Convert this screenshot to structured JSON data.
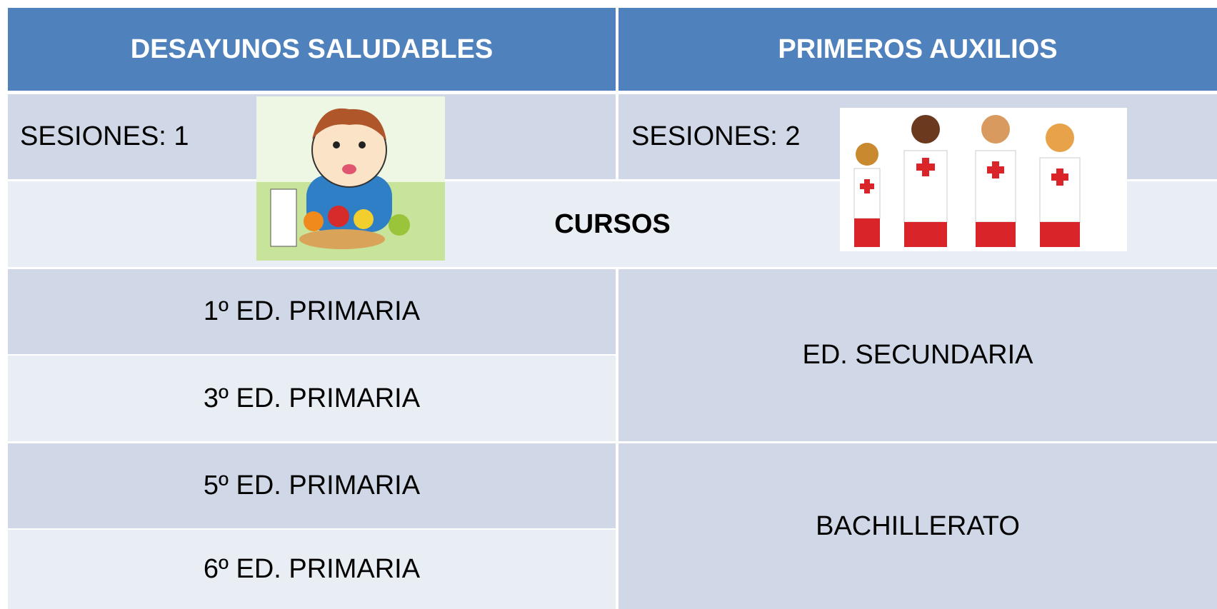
{
  "header": {
    "columns": [
      "DESAYUNOS SALUDABLES",
      "PRIMEROS AUXILIOS"
    ]
  },
  "sessions": [
    "SESIONES: 1",
    "SESIONES: 2"
  ],
  "courses_label": "CURSOS",
  "courses_left": [
    "1º ED. PRIMARIA",
    "3º ED. PRIMARIA",
    "5º ED. PRIMARIA",
    "6º ED. PRIMARIA"
  ],
  "courses_right": [
    "ED. SECUNDARIA",
    "BACHILLERATO"
  ]
}
